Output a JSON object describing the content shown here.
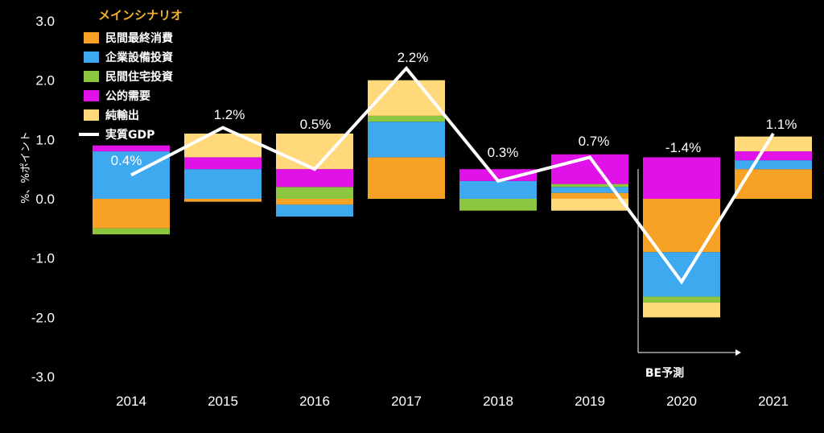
{
  "chart_data": {
    "type": "bar",
    "stacked": true,
    "categories": [
      "2014",
      "2015",
      "2016",
      "2017",
      "2018",
      "2019",
      "2020",
      "2021"
    ],
    "ylabel": "%、%ポイント",
    "ylim": [
      -3.0,
      3.0
    ],
    "yticks": [
      "3.0",
      "2.0",
      "1.0",
      "0.0",
      "-1.0",
      "-2.0",
      "-3.0"
    ],
    "legend": {
      "title": "メインシナリオ",
      "position": "top-left"
    },
    "series": [
      {
        "name": "民間最終消費",
        "color": "#f7a125",
        "values": [
          -0.5,
          -0.05,
          -0.1,
          0.7,
          0.0,
          0.1,
          -0.9,
          0.5
        ]
      },
      {
        "name": "企業設備投資",
        "color": "#3fa9f0",
        "values": [
          0.8,
          0.5,
          -0.2,
          0.6,
          0.3,
          0.1,
          -0.75,
          0.15
        ]
      },
      {
        "name": "民間住宅投資",
        "color": "#8dc63f",
        "values": [
          -0.1,
          0.0,
          0.2,
          0.1,
          -0.2,
          0.05,
          -0.1,
          0.0
        ]
      },
      {
        "name": "公的需要",
        "color": "#e012e8",
        "values": [
          0.1,
          0.2,
          0.3,
          0.0,
          0.2,
          0.5,
          0.7,
          0.15
        ]
      },
      {
        "name": "純輸出",
        "color": "#ffd97a",
        "values": [
          0.0,
          0.4,
          0.6,
          0.6,
          0.0,
          -0.2,
          -0.25,
          0.25
        ]
      }
    ],
    "line": {
      "name": "実質GDP",
      "color": "#ffffff",
      "values": [
        0.4,
        1.2,
        0.5,
        2.2,
        0.3,
        0.7,
        -1.4,
        1.1
      ],
      "labels": [
        "0.4%",
        "1.2%",
        "0.5%",
        "2.2%",
        "0.3%",
        "0.7%",
        "-1.4%",
        "1.1%"
      ]
    },
    "forecast": {
      "label": "BE予測",
      "start_category": "2020"
    }
  }
}
